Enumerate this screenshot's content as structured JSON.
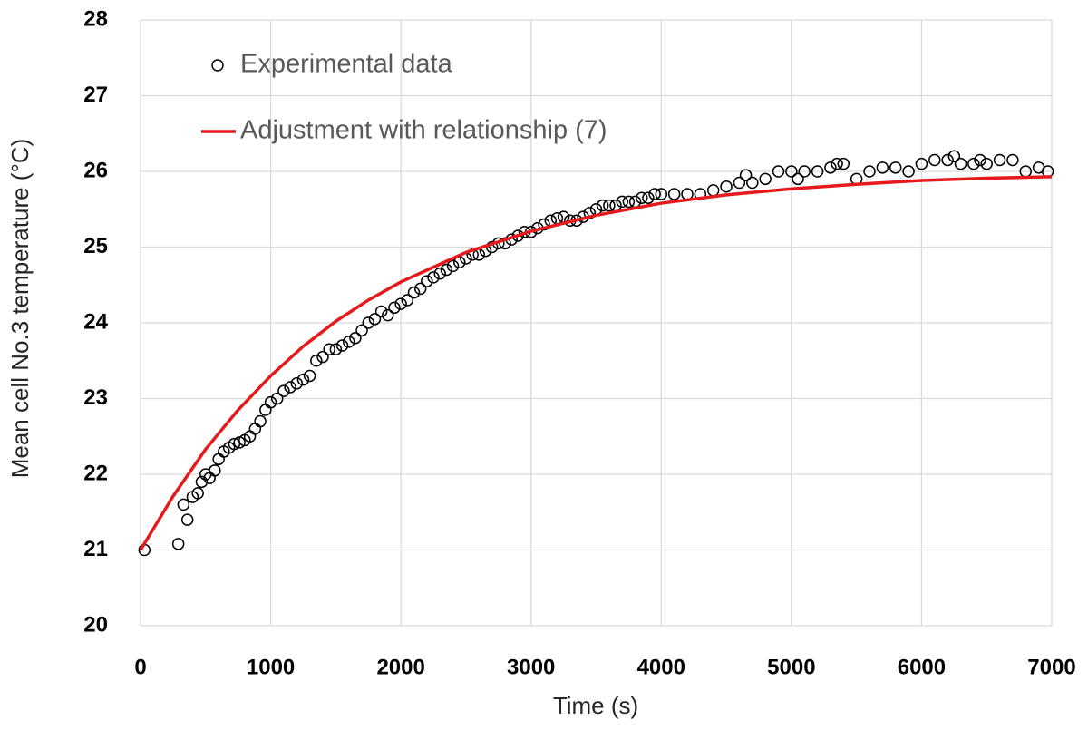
{
  "chart_data": {
    "type": "scatter-line",
    "x_label": "Time (s)",
    "y_label": "Mean cell No.3 temperature (°C)",
    "xlim": [
      0,
      7000
    ],
    "xticks": [
      0,
      1000,
      2000,
      3000,
      4000,
      5000,
      6000,
      7000
    ],
    "ylim": [
      20,
      28
    ],
    "yticks": [
      20,
      21,
      22,
      23,
      24,
      25,
      26,
      27,
      28
    ],
    "grid": true,
    "legend": "upper left",
    "series": [
      {
        "name": "Experimental data",
        "kind": "scatter",
        "color": "#000000",
        "x": [
          30,
          290,
          330,
          360,
          400,
          440,
          470,
          500,
          530,
          570,
          600,
          640,
          680,
          720,
          760,
          800,
          840,
          880,
          920,
          960,
          1000,
          1050,
          1100,
          1150,
          1200,
          1250,
          1300,
          1350,
          1400,
          1450,
          1500,
          1550,
          1600,
          1650,
          1700,
          1750,
          1800,
          1850,
          1900,
          1950,
          2000,
          2050,
          2100,
          2150,
          2200,
          2250,
          2300,
          2350,
          2400,
          2450,
          2500,
          2550,
          2600,
          2650,
          2700,
          2750,
          2800,
          2850,
          2900,
          2950,
          3000,
          3050,
          3100,
          3150,
          3200,
          3250,
          3300,
          3350,
          3400,
          3450,
          3500,
          3550,
          3600,
          3650,
          3700,
          3750,
          3800,
          3850,
          3900,
          3950,
          4000,
          4100,
          4200,
          4300,
          4400,
          4500,
          4600,
          4650,
          4700,
          4800,
          4900,
          5000,
          5050,
          5100,
          5200,
          5300,
          5350,
          5400,
          5500,
          5600,
          5700,
          5800,
          5900,
          6000,
          6100,
          6200,
          6250,
          6300,
          6400,
          6450,
          6500,
          6600,
          6700,
          6800,
          6900,
          6970
        ],
        "values": [
          21.0,
          21.08,
          21.6,
          21.4,
          21.7,
          21.75,
          21.9,
          22.0,
          21.95,
          22.05,
          22.2,
          22.3,
          22.35,
          22.4,
          22.42,
          22.45,
          22.5,
          22.6,
          22.7,
          22.85,
          22.95,
          23.0,
          23.1,
          23.15,
          23.2,
          23.25,
          23.3,
          23.5,
          23.55,
          23.65,
          23.65,
          23.7,
          23.75,
          23.8,
          23.9,
          24.0,
          24.05,
          24.15,
          24.1,
          24.2,
          24.25,
          24.3,
          24.4,
          24.45,
          24.55,
          24.6,
          24.65,
          24.7,
          24.75,
          24.8,
          24.85,
          24.9,
          24.9,
          24.95,
          25.0,
          25.05,
          25.05,
          25.1,
          25.15,
          25.2,
          25.2,
          25.25,
          25.3,
          25.35,
          25.38,
          25.4,
          25.35,
          25.35,
          25.4,
          25.45,
          25.5,
          25.55,
          25.55,
          25.55,
          25.6,
          25.6,
          25.6,
          25.65,
          25.65,
          25.7,
          25.7,
          25.7,
          25.7,
          25.7,
          25.75,
          25.8,
          25.85,
          25.95,
          25.85,
          25.9,
          26.0,
          26.0,
          25.9,
          26.0,
          26.0,
          26.05,
          26.1,
          26.1,
          25.9,
          26.0,
          26.05,
          26.05,
          26.0,
          26.1,
          26.15,
          26.15,
          26.2,
          26.1,
          26.1,
          26.15,
          26.1,
          26.15,
          26.15,
          26.0,
          26.05,
          26.0
        ]
      },
      {
        "name": "Adjustment with relationship (7)",
        "kind": "line",
        "color": "#e41a1c",
        "x": [
          0,
          250,
          500,
          750,
          1000,
          1250,
          1500,
          1750,
          2000,
          2500,
          3000,
          3500,
          4000,
          4500,
          5000,
          5500,
          6000,
          6500,
          7000
        ],
        "values": [
          21.0,
          21.71,
          22.33,
          22.85,
          23.3,
          23.69,
          24.02,
          24.3,
          24.54,
          24.93,
          25.21,
          25.42,
          25.58,
          25.69,
          25.77,
          25.83,
          25.88,
          25.91,
          25.93
        ]
      }
    ]
  }
}
